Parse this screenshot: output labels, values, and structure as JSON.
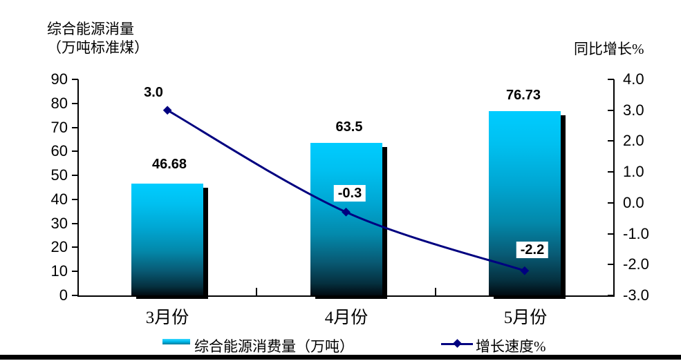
{
  "chart": {
    "left_axis_title": [
      "综合能源消量",
      "（万吨标准煤）"
    ],
    "right_axis_title": "同比增长%",
    "left_ticks": [
      "90",
      "80",
      "70",
      "60",
      "50",
      "40",
      "30",
      "20",
      "10",
      "0"
    ],
    "right_ticks": [
      "4.0",
      "3.0",
      "2.0",
      "1.0",
      "0.0",
      "-1.0",
      "-2.0",
      "-3.0"
    ],
    "categories": [
      "3月份",
      "4月份",
      "5月份"
    ],
    "bar_labels": [
      "46.68",
      "63.5",
      "76.73"
    ],
    "line_labels": [
      "3.0",
      "-0.3",
      "-2.2"
    ],
    "legend": {
      "bar_label": "综合能源消费量（万吨）",
      "line_label": "增长速度%"
    },
    "colors": {
      "bar_top": "#00ccff",
      "bar_mid": "#0389ab",
      "bar_bottom": "#010a10",
      "line": "#000080",
      "shadow": "#000000"
    }
  },
  "chart_data": {
    "type": "combo",
    "categories": [
      "3月份",
      "4月份",
      "5月份"
    ],
    "series": [
      {
        "name": "综合能源消费量（万吨）",
        "type": "bar",
        "axis": "left",
        "values": [
          46.68,
          63.5,
          76.73
        ]
      },
      {
        "name": "增长速度%",
        "type": "line",
        "axis": "right",
        "values": [
          3.0,
          -0.3,
          -2.2
        ]
      }
    ],
    "left_axis": {
      "title": "综合能源消量（万吨标准煤）",
      "range": [
        0,
        90
      ],
      "tick_step": 10
    },
    "right_axis": {
      "title": "同比增长%",
      "range": [
        -3.0,
        4.0
      ],
      "tick_step": 1.0
    },
    "grid": false,
    "legend_position": "bottom",
    "data_labels": true
  }
}
